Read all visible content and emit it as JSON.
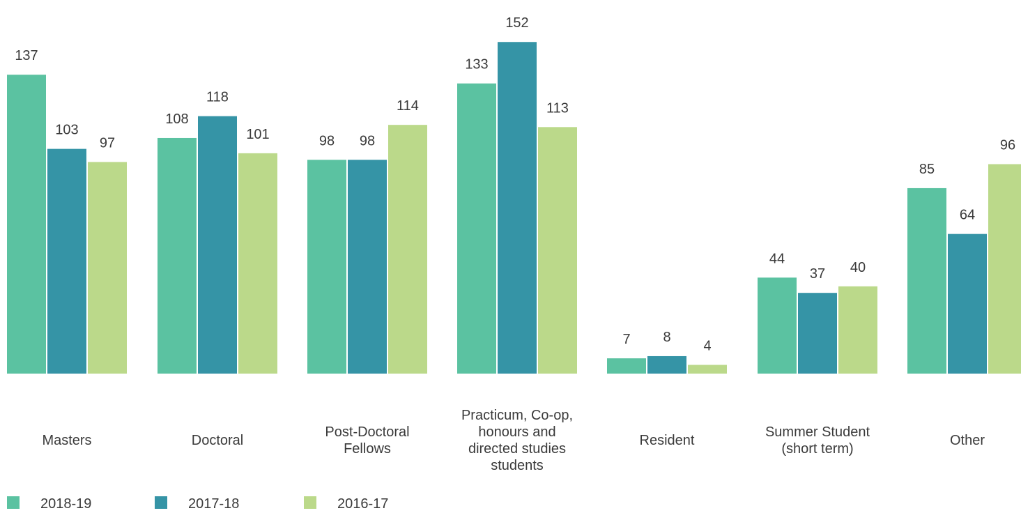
{
  "chart_data": {
    "type": "bar",
    "title": "",
    "xlabel": "",
    "ylabel": "",
    "categories": [
      [
        "Masters"
      ],
      [
        "Doctoral"
      ],
      [
        "Post-Doctoral",
        "Fellows"
      ],
      [
        "Practicum, Co-op,",
        "honours and",
        "directed studies",
        "students"
      ],
      [
        "Resident"
      ],
      [
        "Summer Student",
        "(short term)"
      ],
      [
        "Other"
      ]
    ],
    "series": [
      {
        "name": "2018-19",
        "color": "#5bc2a1",
        "values": [
          137,
          108,
          98,
          133,
          7,
          44,
          85
        ]
      },
      {
        "name": "2017-18",
        "color": "#3594a6",
        "values": [
          103,
          118,
          98,
          152,
          8,
          37,
          64
        ]
      },
      {
        "name": "2016-17",
        "color": "#bbd98a",
        "values": [
          97,
          101,
          114,
          113,
          4,
          40,
          96
        ]
      }
    ],
    "ylim": [
      0,
      160
    ],
    "grid": false,
    "legend_position": "bottom-left"
  }
}
